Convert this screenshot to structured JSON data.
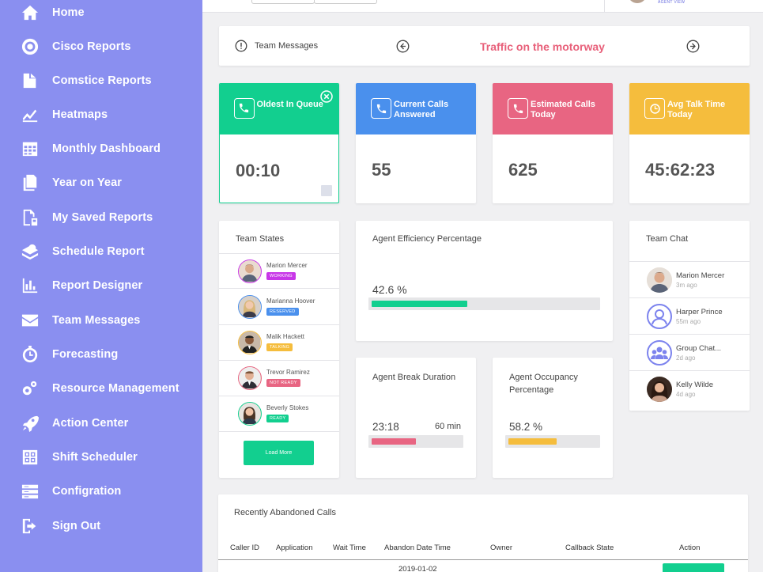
{
  "sidebar": {
    "items": [
      {
        "label": "Home",
        "icon": "home-icon"
      },
      {
        "label": "Cisco Reports",
        "icon": "target-icon"
      },
      {
        "label": "Comstice Reports",
        "icon": "document-chart-icon"
      },
      {
        "label": "Heatmaps",
        "icon": "line-chart-icon"
      },
      {
        "label": "Monthly Dashboard",
        "icon": "calendar-icon"
      },
      {
        "label": "Year on Year",
        "icon": "documents-icon"
      },
      {
        "label": "My Saved Reports",
        "icon": "saved-report-icon"
      },
      {
        "label": "Schedule Report",
        "icon": "schedule-icon"
      },
      {
        "label": "Report Designer",
        "icon": "bar-chart-icon"
      },
      {
        "label": "Team Messages",
        "icon": "envelope-icon"
      },
      {
        "label": "Forecasting",
        "icon": "clock-gear-icon"
      },
      {
        "label": "Resource Management",
        "icon": "gears-icon"
      },
      {
        "label": "Action Center",
        "icon": "rocket-icon"
      },
      {
        "label": "Shift Scheduler",
        "icon": "grid-icon"
      },
      {
        "label": "Configration",
        "icon": "server-icon"
      },
      {
        "label": "Sign Out",
        "icon": "sign-out-icon"
      }
    ]
  },
  "topbar": {
    "agent_view": "AGENT VIEW"
  },
  "messages": {
    "label": "Team Messages",
    "text": "Traffic on the motorway"
  },
  "stats": [
    {
      "title": "Oldest In Queue",
      "value": "00:10",
      "icon": "phone-icon",
      "color": "#12cf8f"
    },
    {
      "title": "Current Calls Answered",
      "value": "55",
      "icon": "phone-icon",
      "color": "#4a90ed"
    },
    {
      "title": "Estimated Calls Today",
      "value": "625",
      "icon": "phone-icon",
      "color": "#e86582"
    },
    {
      "title": "Avg Talk Time Today",
      "value": "45:62:23",
      "icon": "clock-icon",
      "color": "#f5bd3d"
    }
  ],
  "team_states": {
    "title": "Team States",
    "members": [
      {
        "name": "Marion Mercer",
        "status": "WORKING",
        "color": "#c837e8"
      },
      {
        "name": "Marianna Hoover",
        "status": "RESERVED",
        "color": "#4a90ed"
      },
      {
        "name": "Malik Hackett",
        "status": "TALKING",
        "color": "#f5bd3d"
      },
      {
        "name": "Trevor Ramirez",
        "status": "NOT READY",
        "color": "#e86582"
      },
      {
        "name": "Beverly Stokes",
        "status": "READY",
        "color": "#12cf8f"
      }
    ],
    "load_more": "Load More"
  },
  "agent_efficiency": {
    "title": "Agent Efficiency Percentage",
    "value": "42.6 %",
    "percent": 42.6
  },
  "break_duration": {
    "title": "Agent Break Duration",
    "value": "23:18",
    "target": "60 min",
    "percent": 38
  },
  "occupancy": {
    "title": "Agent Occupancy Percentage",
    "value": "58.2 %",
    "percent": 58.2
  },
  "team_chat": {
    "title": "Team Chat",
    "chats": [
      {
        "name": "Marion Mercer",
        "time": "3m ago"
      },
      {
        "name": "Harper Prince",
        "time": "55m ago"
      },
      {
        "name": "Group Chat...",
        "time": "2d ago"
      },
      {
        "name": "Kelly Wilde",
        "time": "4d ago"
      }
    ]
  },
  "abandoned": {
    "title": "Recently Abandoned Calls",
    "columns": [
      "Caller ID",
      "Application",
      "Wait Time",
      "Abandon Date Time",
      "Owner",
      "Callback State",
      "Action"
    ],
    "first_row_date": "2019-01-02"
  }
}
